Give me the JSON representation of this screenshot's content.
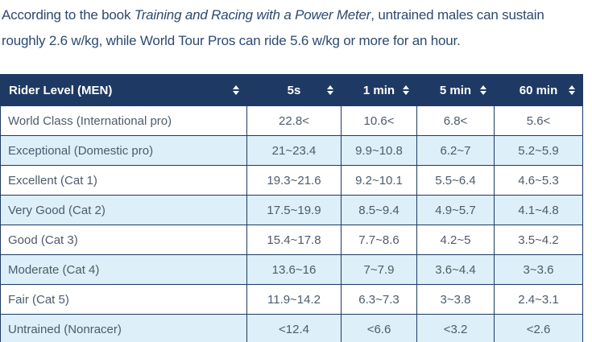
{
  "intro": {
    "text_before_title": "According to the book ",
    "book_title": "Training and Racing with a Power Meter",
    "text_after_title": ", untrained males can sustain roughly 2.6 w/kg, while World Tour Pros can ride 5.6 w/kg or more for an hour."
  },
  "table": {
    "columns": [
      {
        "label": "Rider Level (MEN)"
      },
      {
        "label": "5s"
      },
      {
        "label": "1 min"
      },
      {
        "label": "5 min"
      },
      {
        "label": "60 min"
      }
    ],
    "rows": [
      [
        "World Class (International pro)",
        "22.8<",
        "10.6<",
        "6.8<",
        "5.6<"
      ],
      [
        "Exceptional (Domestic pro)",
        "21~23.4",
        "9.9~10.8",
        "6.2~7",
        "5.2~5.9"
      ],
      [
        "Excellent (Cat 1)",
        "19.3~21.6",
        "9.2~10.1",
        "5.5~6.4",
        "4.6~5.3"
      ],
      [
        "Very Good (Cat 2)",
        "17.5~19.9",
        "8.5~9.4",
        "4.9~5.7",
        "4.1~4.8"
      ],
      [
        "Good (Cat 3)",
        "15.4~17.8",
        "7.7~8.6",
        "4.2~5",
        "3.5~4.2"
      ],
      [
        "Moderate (Cat 4)",
        "13.6~16",
        "7~7.9",
        "3.6~4.4",
        "3~3.6"
      ],
      [
        "Fair (Cat 5)",
        "11.9~14.2",
        "6.3~7.3",
        "3~3.8",
        "2.4~3.1"
      ],
      [
        "Untrained (Nonracer)",
        "<12.4",
        "<6.6",
        "<3.2",
        "<2.6"
      ]
    ]
  },
  "colors": {
    "header_bg": "#1e3a64",
    "header_text": "#ffffff",
    "border": "#1e3a64",
    "stripe_row_bg": "#ddeff8",
    "cell_text": "#4d5b6e",
    "intro_text": "#2c4a72"
  }
}
